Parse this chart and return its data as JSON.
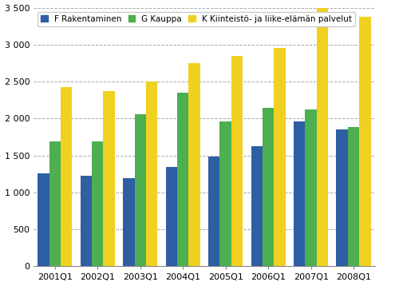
{
  "categories": [
    "2001Q1",
    "2002Q1",
    "2003Q1",
    "2004Q1",
    "2005Q1",
    "2006Q1",
    "2007Q1",
    "2008Q1"
  ],
  "series": {
    "F Rakentaminen": [
      1260,
      1230,
      1190,
      1340,
      1480,
      1630,
      1960,
      1850
    ],
    "G Kauppa": [
      1690,
      1690,
      2060,
      2350,
      1960,
      2140,
      2120,
      1880
    ],
    "K Kiinteistö- ja liike-elämän palvelut": [
      2430,
      2370,
      2500,
      2750,
      2850,
      2960,
      3510,
      3380
    ]
  },
  "colors": {
    "F Rakentaminen": "#2E5FA3",
    "G Kauppa": "#4CAF50",
    "K Kiinteistö- ja liike-elämän palvelut": "#F0D020"
  },
  "ylim": [
    0,
    3500
  ],
  "yticks": [
    0,
    500,
    1000,
    1500,
    2000,
    2500,
    3000,
    3500
  ],
  "ytick_labels": [
    "0",
    "500",
    "1 000",
    "1 500",
    "2 000",
    "2 500",
    "3 000",
    "3 500"
  ],
  "legend_labels": [
    "F Rakentaminen",
    "G Kauppa",
    "K Kiinteistö- ja liike-elämän palvelut"
  ],
  "bar_width": 0.27,
  "background_color": "#ffffff",
  "grid_color": "#aaaaaa"
}
